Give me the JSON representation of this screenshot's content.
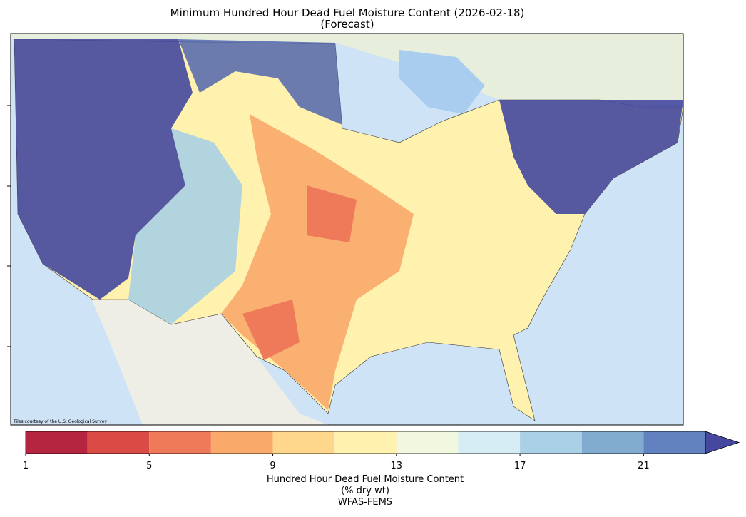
{
  "map": {
    "title": "Minimum Hundred Hour Dead Fuel Moisture Content (2026-02-18)",
    "subtitle": "(Forecast)",
    "attribution": "Tiles courtesy of the U.S. Geological Survey"
  },
  "colorbar": {
    "bounds": [
      1,
      3,
      5,
      7,
      9,
      11,
      13,
      15,
      17,
      19,
      21,
      23
    ],
    "colors": [
      "#b5253f",
      "#da4b45",
      "#ef7a5a",
      "#f9a96a",
      "#fed68c",
      "#fff1ae",
      "#f2f8df",
      "#d5edf4",
      "#a9d0e4",
      "#82abd0",
      "#6181bf"
    ],
    "extend_color": "#45489e",
    "ticks": [
      1,
      5,
      9,
      13,
      17,
      21
    ],
    "label": [
      "Hundred Hour Dead Fuel Moisture Content",
      "(% dry wt)",
      "WFAS-FEMS"
    ]
  }
}
